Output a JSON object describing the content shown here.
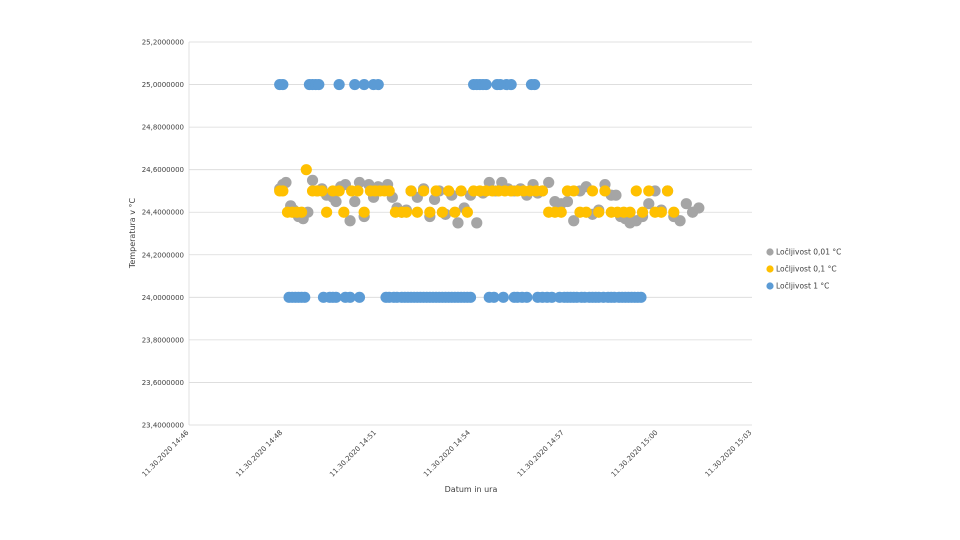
{
  "chart_data": {
    "type": "scatter",
    "xlabel": "Datum in ura",
    "ylabel": "Temperatura v °C",
    "ylim": [
      23.4,
      25.2
    ],
    "y_ticks": [
      "25,2000000",
      "25,0000000",
      "24,8000000",
      "24,6000000",
      "24,4000000",
      "24,2000000",
      "24,0000000",
      "23,8000000",
      "23,6000000",
      "23,4000000"
    ],
    "x_ticks": [
      "11.30.2020 14:46",
      "11.30.2020 14:48",
      "11.30.2020 14:51",
      "11.30.2020 14:54",
      "11.30.2020 14:57",
      "11.30.2020 15:00",
      "11.30.2020 15:03"
    ],
    "x_tick_minutes": [
      0,
      3,
      6,
      9,
      12,
      15,
      18
    ],
    "grid": true,
    "legend_position": "right",
    "series": [
      {
        "name": "Ločljivost 0,01 °C",
        "color": "#a5a5a5",
        "x": [
          2.9,
          3.0,
          3.1,
          3.25,
          3.35,
          3.5,
          3.65,
          3.8,
          3.95,
          4.1,
          4.25,
          4.4,
          4.6,
          4.7,
          4.85,
          5.0,
          5.15,
          5.3,
          5.45,
          5.6,
          5.75,
          5.9,
          6.05,
          6.2,
          6.35,
          6.5,
          6.65,
          6.8,
          6.95,
          7.1,
          7.3,
          7.5,
          7.7,
          7.85,
          8.0,
          8.2,
          8.4,
          8.6,
          8.8,
          9.0,
          9.2,
          9.4,
          9.6,
          9.8,
          10.0,
          10.2,
          10.4,
          10.6,
          10.8,
          11.0,
          11.15,
          11.3,
          11.5,
          11.7,
          11.9,
          12.1,
          12.3,
          12.5,
          12.7,
          12.9,
          13.1,
          13.3,
          13.5,
          13.65,
          13.8,
          13.95,
          14.1,
          14.3,
          14.5,
          14.7,
          14.9,
          15.1,
          15.3,
          15.5,
          15.7,
          15.9,
          16.1,
          16.3
        ],
        "values": [
          24.51,
          24.53,
          24.54,
          24.43,
          24.41,
          24.38,
          24.37,
          24.4,
          24.55,
          24.5,
          24.51,
          24.48,
          24.47,
          24.45,
          24.52,
          24.53,
          24.36,
          24.45,
          24.54,
          24.38,
          24.53,
          24.47,
          24.52,
          24.51,
          24.53,
          24.47,
          24.42,
          24.4,
          24.41,
          24.5,
          24.47,
          24.51,
          24.38,
          24.46,
          24.5,
          24.39,
          24.48,
          24.35,
          24.42,
          24.48,
          24.35,
          24.49,
          24.54,
          24.5,
          24.54,
          24.51,
          24.5,
          24.51,
          24.48,
          24.53,
          24.49,
          24.5,
          24.54,
          24.45,
          24.44,
          24.45,
          24.36,
          24.5,
          24.52,
          24.39,
          24.41,
          24.53,
          24.48,
          24.48,
          24.38,
          24.37,
          24.35,
          24.36,
          24.38,
          24.44,
          24.5,
          24.41,
          24.5,
          24.38,
          24.36,
          24.44,
          24.4,
          24.42
        ]
      },
      {
        "name": "Ločljivost 0,1 °C",
        "color": "#ffc000",
        "x": [
          2.9,
          3.0,
          3.15,
          3.3,
          3.45,
          3.6,
          3.75,
          3.95,
          4.1,
          4.25,
          4.4,
          4.6,
          4.8,
          4.95,
          5.2,
          5.4,
          5.6,
          5.8,
          5.95,
          6.1,
          6.25,
          6.4,
          6.6,
          6.8,
          6.95,
          7.1,
          7.3,
          7.5,
          7.7,
          7.9,
          8.1,
          8.3,
          8.5,
          8.7,
          8.9,
          9.1,
          9.3,
          9.5,
          9.7,
          9.9,
          10.1,
          10.3,
          10.5,
          10.7,
          10.9,
          11.1,
          11.3,
          11.5,
          11.7,
          11.9,
          12.1,
          12.3,
          12.5,
          12.7,
          12.9,
          13.1,
          13.3,
          13.5,
          13.7,
          13.9,
          14.1,
          14.3,
          14.5,
          14.7,
          14.9,
          15.1,
          15.3,
          15.5
        ],
        "values": [
          24.5,
          24.5,
          24.4,
          24.4,
          24.4,
          24.4,
          24.6,
          24.5,
          24.5,
          24.5,
          24.4,
          24.5,
          24.5,
          24.4,
          24.5,
          24.5,
          24.4,
          24.5,
          24.5,
          24.5,
          24.5,
          24.5,
          24.4,
          24.4,
          24.4,
          24.5,
          24.4,
          24.5,
          24.4,
          24.5,
          24.4,
          24.5,
          24.4,
          24.5,
          24.4,
          24.5,
          24.5,
          24.5,
          24.5,
          24.5,
          24.5,
          24.5,
          24.5,
          24.5,
          24.5,
          24.5,
          24.5,
          24.4,
          24.4,
          24.4,
          24.5,
          24.5,
          24.4,
          24.4,
          24.5,
          24.4,
          24.5,
          24.4,
          24.4,
          24.4,
          24.4,
          24.5,
          24.4,
          24.5,
          24.4,
          24.4,
          24.5,
          24.4
        ]
      },
      {
        "name": "Ločljivost 1 °C",
        "color": "#5b9bd5",
        "x": [
          2.9,
          3.0,
          3.2,
          3.3,
          3.4,
          3.5,
          3.6,
          3.7,
          3.85,
          3.95,
          4.05,
          4.15,
          4.3,
          4.5,
          4.6,
          4.7,
          4.8,
          5.0,
          5.15,
          5.3,
          5.45,
          5.6,
          5.9,
          6.05,
          6.3,
          6.4,
          6.55,
          6.65,
          6.8,
          6.9,
          7.0,
          7.1,
          7.2,
          7.3,
          7.4,
          7.5,
          7.6,
          7.7,
          7.8,
          7.9,
          8.0,
          8.1,
          8.2,
          8.3,
          8.4,
          8.5,
          8.6,
          8.7,
          8.8,
          8.9,
          9.0,
          9.1,
          9.2,
          9.3,
          9.4,
          9.5,
          9.6,
          9.75,
          9.85,
          9.95,
          10.05,
          10.15,
          10.3,
          10.4,
          10.5,
          10.65,
          10.8,
          10.95,
          11.05,
          11.15,
          11.3,
          11.45,
          11.6,
          11.85,
          12.0,
          12.1,
          12.2,
          12.3,
          12.4,
          12.55,
          12.65,
          12.8,
          12.9,
          13.0,
          13.1,
          13.25,
          13.4,
          13.5,
          13.6,
          13.75,
          13.85,
          13.95,
          14.05,
          14.15,
          14.25,
          14.35,
          14.45
        ],
        "values": [
          25,
          25,
          24,
          24,
          24,
          24,
          24,
          24,
          25,
          25,
          25,
          25,
          24,
          24,
          24,
          24,
          25,
          24,
          24,
          25,
          24,
          25,
          25,
          25,
          24,
          24,
          24,
          24,
          24,
          24,
          24,
          24,
          24,
          24,
          24,
          24,
          24,
          24,
          24,
          24,
          24,
          24,
          24,
          24,
          24,
          24,
          24,
          24,
          24,
          24,
          24,
          25,
          25,
          25,
          25,
          25,
          24,
          24,
          25,
          25,
          24,
          25,
          25,
          24,
          24,
          24,
          24,
          25,
          25,
          24,
          24,
          24,
          24,
          24,
          24,
          24,
          24,
          24,
          24,
          24,
          24,
          24,
          24,
          24,
          24,
          24,
          24,
          24,
          24,
          24,
          24,
          24,
          24,
          24,
          24,
          24,
          24
        ]
      }
    ]
  }
}
